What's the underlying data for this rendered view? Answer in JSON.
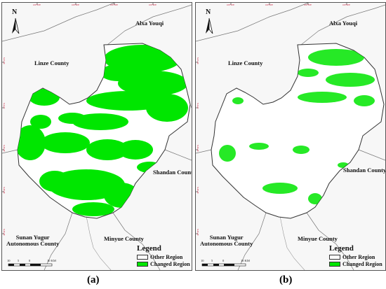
{
  "panels": [
    {
      "label": "(a)",
      "ticks_top": [
        "100°10'E",
        "100°20'E",
        "100°30'E",
        "100°40'E"
      ],
      "ticks_left": [
        "39°10'N",
        "39°0'N",
        "38°50'N",
        "38°40'N",
        "38°30'N"
      ],
      "north_label": "N",
      "places": {
        "alxa": "Alxa Youqi",
        "linze": "Linze County",
        "shandan": "Shandan County",
        "minyue": "Minyue County",
        "sunan_line1": "Sunan Yugur",
        "sunan_line2": "Autonomous County"
      },
      "legend": {
        "title": "Legend",
        "items": [
          {
            "label": "Other Region",
            "color": "#ffffff"
          },
          {
            "label": "Changed Region",
            "color": "#00e600"
          }
        ]
      },
      "scale": {
        "labels": [
          "10",
          "5",
          "0",
          "10 KM"
        ]
      }
    },
    {
      "label": "(b)",
      "ticks_top": [
        "100°10'E",
        "100°20'E",
        "100°30'E",
        "100°40'E"
      ],
      "ticks_left": [
        "39°10'N",
        "39°0'N",
        "38°50'N",
        "38°40'N",
        "38°30'N"
      ],
      "north_label": "N",
      "places": {
        "alxa": "Alxa Youqi",
        "linze": "Linze County",
        "shandan": "Shandan County",
        "minyue": "Minyue County",
        "sunan_line1": "Sunan Yugur",
        "sunan_line2": "Autonomous County"
      },
      "legend": {
        "title": "Legend",
        "items": [
          {
            "label": "Other Region",
            "color": "#ffffff"
          },
          {
            "label": "Changed Region",
            "color": "#00e600"
          }
        ]
      },
      "scale": {
        "labels": [
          "10",
          "5",
          "0",
          "10 KM"
        ]
      }
    }
  ],
  "colors": {
    "changed": "#00e600",
    "region_fill": "#ffffff",
    "background": "#f7f7f7",
    "border": "#333333",
    "tick_text": "#c8102e"
  },
  "icons": {
    "north_arrow": "north-arrow-icon"
  }
}
